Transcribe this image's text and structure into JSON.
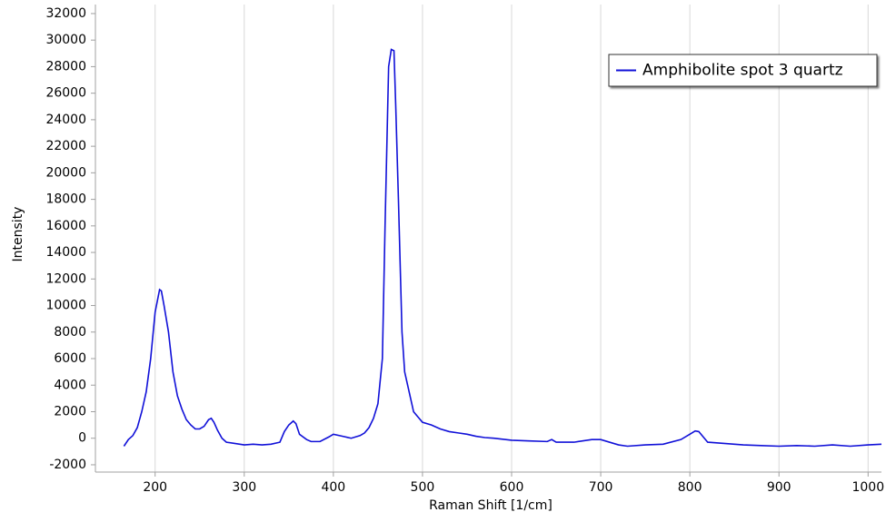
{
  "chart_data": {
    "type": "line",
    "xlabel": "Raman Shift [1/cm]",
    "ylabel": "Intensity",
    "xlim": [
      133,
      1015
    ],
    "ylim": [
      -2550,
      32680
    ],
    "xticks": [
      200,
      300,
      400,
      500,
      600,
      700,
      800,
      900,
      1000
    ],
    "yticks": [
      -2000,
      0,
      2000,
      4000,
      6000,
      8000,
      10000,
      12000,
      14000,
      16000,
      18000,
      20000,
      22000,
      24000,
      26000,
      28000,
      30000,
      32000
    ],
    "grid": "x",
    "legend": "upper right",
    "x": [
      165,
      170,
      175,
      180,
      185,
      190,
      195,
      200,
      205,
      207,
      210,
      215,
      220,
      225,
      230,
      235,
      240,
      245,
      250,
      255,
      260,
      263,
      266,
      270,
      275,
      280,
      290,
      300,
      310,
      320,
      330,
      340,
      345,
      350,
      355,
      358,
      362,
      370,
      375,
      385,
      395,
      400,
      410,
      420,
      430,
      435,
      440,
      445,
      450,
      455,
      458,
      462,
      465,
      468,
      470,
      473,
      477,
      480,
      485,
      490,
      495,
      500,
      510,
      520,
      530,
      540,
      550,
      560,
      570,
      580,
      600,
      620,
      640,
      645,
      650,
      670,
      690,
      700,
      720,
      730,
      750,
      770,
      790,
      800,
      806,
      810,
      820,
      840,
      860,
      880,
      900,
      920,
      940,
      960,
      980,
      1000,
      1015
    ],
    "series": [
      {
        "name": "Amphibolite spot 3 quartz",
        "color": "#1010d8",
        "values": [
          -600,
          -100,
          200,
          800,
          2000,
          3500,
          6000,
          9500,
          11200,
          11100,
          10000,
          8000,
          5000,
          3200,
          2200,
          1400,
          1000,
          700,
          700,
          900,
          1400,
          1500,
          1200,
          600,
          0,
          -300,
          -400,
          -500,
          -450,
          -500,
          -450,
          -300,
          500,
          1000,
          1300,
          1100,
          300,
          -100,
          -250,
          -250,
          100,
          300,
          150,
          0,
          200,
          400,
          800,
          1500,
          2600,
          6000,
          16000,
          28000,
          29300,
          29200,
          25000,
          18000,
          8000,
          5000,
          3500,
          2000,
          1600,
          1200,
          1000,
          700,
          500,
          400,
          300,
          150,
          50,
          0,
          -150,
          -200,
          -250,
          -100,
          -300,
          -300,
          -100,
          -100,
          -500,
          -600,
          -500,
          -450,
          -100,
          300,
          550,
          500,
          -300,
          -400,
          -500,
          -550,
          -600,
          -550,
          -600,
          -500,
          -600,
          -500,
          -450
        ]
      }
    ]
  }
}
